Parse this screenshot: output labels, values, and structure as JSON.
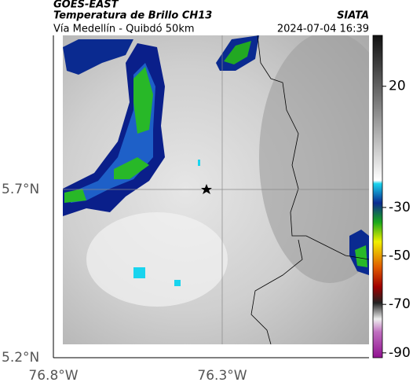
{
  "header": {
    "title": "GOES-EAST",
    "subtitle": "Temperatura de Brillo CH13",
    "source": "SIATA",
    "route": "Vía Medellín - Quibdó 50km",
    "timestamp": "2024-07-04 16:39"
  },
  "axes": {
    "y_labels": [
      "5.7°N",
      "5.2°N"
    ],
    "x_labels": [
      "76.8°W",
      "76.3°W"
    ]
  },
  "colorbar": {
    "lim": [
      41,
      -92
    ],
    "ticks": [
      20,
      -30,
      -50,
      -70,
      -90
    ]
  }
}
